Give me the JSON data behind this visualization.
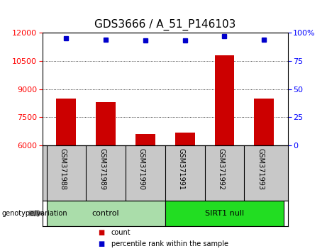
{
  "title": "GDS3666 / A_51_P146103",
  "samples": [
    "GSM371988",
    "GSM371989",
    "GSM371990",
    "GSM371991",
    "GSM371992",
    "GSM371993"
  ],
  "counts": [
    8500,
    8300,
    6600,
    6700,
    10800,
    8500
  ],
  "percentiles": [
    95,
    94,
    93,
    93,
    97,
    94
  ],
  "ylim_left": [
    6000,
    12000
  ],
  "ylim_right": [
    0,
    100
  ],
  "yticks_left": [
    6000,
    7500,
    9000,
    10500,
    12000
  ],
  "yticks_right": [
    0,
    25,
    50,
    75,
    100
  ],
  "bar_color": "#cc0000",
  "dot_color": "#0000cc",
  "bar_width": 0.5,
  "groups": [
    {
      "label": "control",
      "samples": [
        0,
        1,
        2
      ],
      "color": "#aaddaa"
    },
    {
      "label": "SIRT1 null",
      "samples": [
        3,
        4,
        5
      ],
      "color": "#22dd22"
    }
  ],
  "sample_row_color": "#c8c8c8",
  "genotype_label": "genotype/variation",
  "legend_count": "count",
  "legend_percentile": "percentile rank within the sample",
  "title_fontsize": 11,
  "tick_fontsize": 8,
  "label_fontsize": 7,
  "group_fontsize": 8,
  "bg_color": "#ffffff"
}
